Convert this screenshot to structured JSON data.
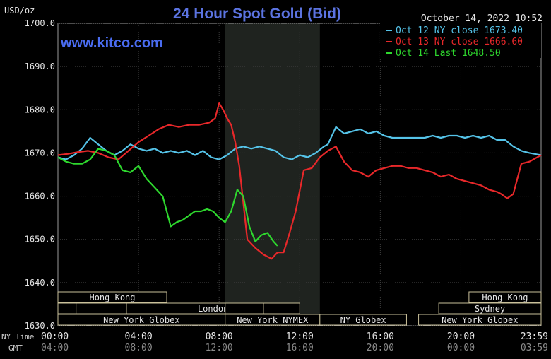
{
  "chart_data": {
    "type": "line",
    "title": "24 Hour Spot Gold (Bid)",
    "ylabel": "USD/oz",
    "timestamp": "October 14, 2022 10:52",
    "watermark": "www.kitco.com",
    "ylim": [
      1630,
      1700
    ],
    "y_ticks": [
      "1700.0",
      "1690.0",
      "1680.0",
      "1670.0",
      "1660.0",
      "1650.0",
      "1640.0",
      "1630.0"
    ],
    "ny_time_label": "NY Time",
    "gmt_label": "GMT",
    "x_ticks_ny": [
      "00:00",
      "04:00",
      "08:00",
      "12:00",
      "16:00",
      "20:00",
      "23:59"
    ],
    "x_ticks_gmt": [
      "04:00",
      "08:00",
      "12:00",
      "16:00",
      "20:00",
      "00:00",
      "03:59"
    ],
    "grid": true,
    "legend_position": "top-right",
    "shaded_period": {
      "start": 8.3,
      "end": 13.0
    },
    "sessions": [
      {
        "label": "Hong Kong",
        "row": 0,
        "start": 0.0,
        "end": 5.4,
        "show_label": true
      },
      {
        "label": "",
        "row": 1,
        "start": 0.0,
        "end": 0.9,
        "show_label": false
      },
      {
        "label": "",
        "row": 1,
        "start": 0.9,
        "end": 3.4,
        "show_label": false
      },
      {
        "label": "",
        "row": 1,
        "start": 3.4,
        "end": 5.4,
        "show_label": false
      },
      {
        "label": "London",
        "row": 1,
        "start": 3.4,
        "end": 12.0,
        "show_label": true
      },
      {
        "label": "",
        "row": 1,
        "start": 8.3,
        "end": 10.2,
        "show_label": false
      },
      {
        "label": "New York Globex",
        "row": 2,
        "start": 0.0,
        "end": 8.3,
        "show_label": true
      },
      {
        "label": "New York NYMEX",
        "row": 2,
        "start": 8.3,
        "end": 13.0,
        "show_label": true
      },
      {
        "label": "NY Globex",
        "row": 2,
        "start": 13.0,
        "end": 17.3,
        "show_label": true
      },
      {
        "label": "Hong Kong",
        "row": 0,
        "start": 20.4,
        "end": 23.98,
        "show_label": true
      },
      {
        "label": "Sydney",
        "row": 1,
        "start": 18.9,
        "end": 23.98,
        "show_label": true
      },
      {
        "label": "New York Globex",
        "row": 2,
        "start": 17.9,
        "end": 23.98,
        "show_label": true
      }
    ],
    "series": [
      {
        "name": "Oct 12 NY close 1673.40",
        "color": "#55c3e8",
        "x": [
          0,
          0.4,
          0.8,
          1.2,
          1.6,
          2.0,
          2.4,
          2.8,
          3.2,
          3.6,
          4.0,
          4.4,
          4.8,
          5.2,
          5.6,
          6.0,
          6.4,
          6.8,
          7.2,
          7.6,
          8.0,
          8.4,
          8.8,
          9.2,
          9.6,
          10.0,
          10.4,
          10.8,
          11.2,
          11.6,
          12.0,
          12.4,
          12.8,
          13.2,
          13.4,
          13.8,
          14.2,
          14.6,
          15.0,
          15.4,
          15.8,
          16.2,
          16.6,
          17.0,
          17.4,
          17.8,
          18.2,
          18.6,
          19.0,
          19.4,
          19.8,
          20.2,
          20.6,
          21.0,
          21.4,
          21.8,
          22.2,
          22.6,
          23.0,
          23.4,
          23.98
        ],
        "values": [
          1669.0,
          1668.5,
          1669.5,
          1671.0,
          1673.5,
          1672.0,
          1670.5,
          1669.5,
          1670.5,
          1672.0,
          1671.0,
          1670.5,
          1671.0,
          1670.0,
          1670.5,
          1670.0,
          1670.5,
          1669.5,
          1670.5,
          1669.0,
          1668.5,
          1669.5,
          1671.0,
          1671.5,
          1671.0,
          1671.5,
          1671.0,
          1670.5,
          1669.0,
          1668.5,
          1669.5,
          1669.0,
          1670.0,
          1671.5,
          1672.0,
          1676.0,
          1674.5,
          1675.0,
          1675.5,
          1674.5,
          1675.0,
          1674.0,
          1673.5,
          1673.5,
          1673.5,
          1673.5,
          1673.5,
          1674.0,
          1673.5,
          1674.0,
          1674.0,
          1673.5,
          1674.0,
          1673.5,
          1674.0,
          1673.0,
          1673.0,
          1671.5,
          1670.5,
          1670.0,
          1669.5
        ]
      },
      {
        "name": "Oct 13 NY close 1666.60",
        "color": "#e8282a",
        "x": [
          0,
          0.5,
          1.0,
          1.5,
          2.0,
          2.5,
          3.0,
          3.5,
          4.0,
          4.5,
          5.0,
          5.5,
          6.0,
          6.5,
          7.0,
          7.5,
          7.8,
          8.0,
          8.2,
          8.4,
          8.6,
          8.8,
          9.0,
          9.4,
          9.8,
          10.2,
          10.6,
          10.9,
          11.2,
          11.5,
          11.8,
          12.2,
          12.6,
          13.0,
          13.4,
          13.8,
          14.2,
          14.6,
          15.0,
          15.4,
          15.8,
          16.2,
          16.6,
          17.0,
          17.4,
          17.8,
          18.2,
          18.6,
          19.0,
          19.4,
          19.8,
          20.2,
          20.6,
          21.0,
          21.4,
          21.8,
          22.0,
          22.3,
          22.6,
          23.0,
          23.4,
          23.98
        ],
        "values": [
          1669.5,
          1669.8,
          1670.2,
          1670.5,
          1670.0,
          1669.0,
          1668.5,
          1670.5,
          1672.5,
          1674.0,
          1675.5,
          1676.5,
          1676.0,
          1676.5,
          1676.5,
          1677.0,
          1678.0,
          1681.5,
          1680.0,
          1678.0,
          1676.5,
          1672.5,
          1667.0,
          1650.0,
          1648.0,
          1646.5,
          1645.5,
          1647.0,
          1647.0,
          1651.5,
          1656.5,
          1666.0,
          1666.5,
          1669.0,
          1670.5,
          1671.5,
          1668.0,
          1666.0,
          1665.5,
          1664.5,
          1666.0,
          1666.5,
          1667.0,
          1667.0,
          1666.5,
          1666.5,
          1666.0,
          1665.5,
          1664.5,
          1665.0,
          1664.0,
          1663.5,
          1663.0,
          1662.5,
          1661.5,
          1661.0,
          1660.5,
          1659.5,
          1660.5,
          1667.5,
          1668.0,
          1669.5
        ]
      },
      {
        "name": "Oct 14 Last 1648.50",
        "color": "#2ed82e",
        "x": [
          0,
          0.4,
          0.8,
          1.2,
          1.6,
          2.0,
          2.4,
          2.8,
          3.2,
          3.6,
          4.0,
          4.4,
          4.8,
          5.2,
          5.6,
          5.9,
          6.2,
          6.5,
          6.8,
          7.1,
          7.4,
          7.7,
          8.0,
          8.3,
          8.6,
          8.9,
          9.2,
          9.5,
          9.8,
          10.1,
          10.4,
          10.7,
          10.9
        ],
        "values": [
          1669.0,
          1668.0,
          1667.5,
          1667.5,
          1668.5,
          1671.0,
          1670.5,
          1669.5,
          1666.0,
          1665.5,
          1667.0,
          1664.0,
          1662.0,
          1660.0,
          1653.0,
          1654.0,
          1654.5,
          1655.5,
          1656.5,
          1656.5,
          1657.0,
          1656.5,
          1655.0,
          1654.0,
          1656.5,
          1661.5,
          1660.0,
          1653.0,
          1649.5,
          1651.0,
          1651.5,
          1649.5,
          1648.5
        ]
      }
    ]
  }
}
